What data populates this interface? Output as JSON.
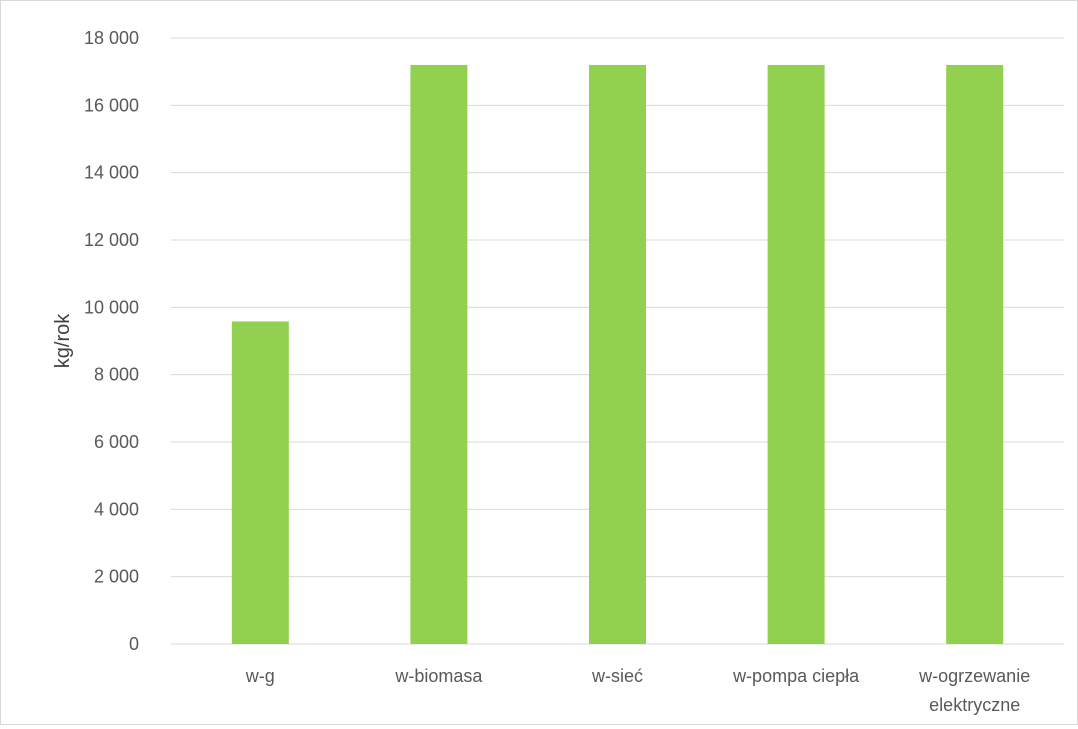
{
  "chart_data": {
    "type": "bar",
    "categories": [
      [
        "w-g"
      ],
      [
        "w-biomasa"
      ],
      [
        "w-sieć"
      ],
      [
        "w-pompa ciepła"
      ],
      [
        "w-ogrzewanie",
        "elektryczne"
      ]
    ],
    "values": [
      9580,
      17200,
      17200,
      17200,
      17200
    ],
    "ylabel": "kg/rok",
    "xlabel": "",
    "title": "",
    "ylim": [
      0,
      18000
    ],
    "yticks": [
      0,
      2000,
      4000,
      6000,
      8000,
      10000,
      12000,
      14000,
      16000,
      18000
    ],
    "ytick_labels": [
      "0",
      "2 000",
      "4 000",
      "6 000",
      "8 000",
      "10 000",
      "12 000",
      "14 000",
      "16 000",
      "18 000"
    ],
    "bar_color": "#92d050",
    "grid": true,
    "gridline_color": "#d9d9d9",
    "legend": "none"
  }
}
